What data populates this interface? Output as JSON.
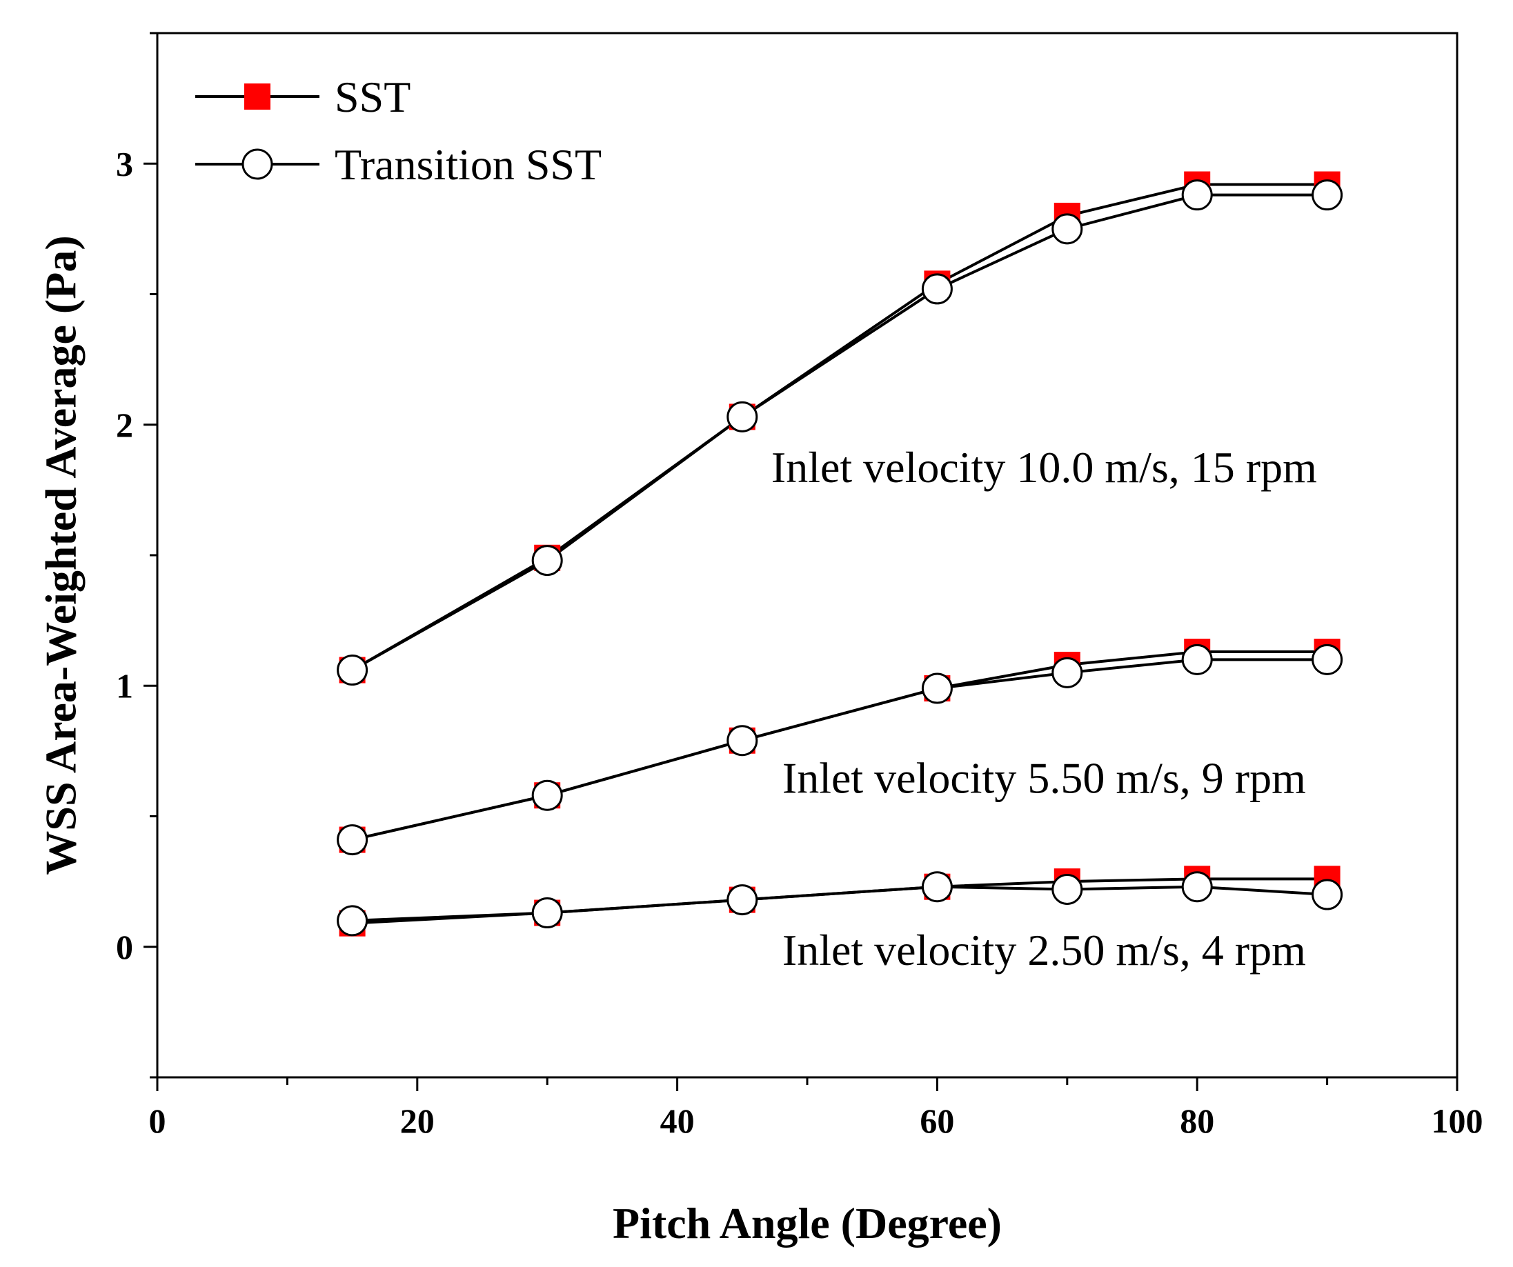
{
  "chart_data": {
    "type": "line",
    "title": "",
    "xlabel": "Pitch Angle (Degree)",
    "ylabel": "WSS Area-Weighted Average (Pa)",
    "xlim": [
      0,
      100
    ],
    "ylim": [
      -0.5,
      3.5
    ],
    "xticks": [
      0,
      20,
      40,
      60,
      80,
      100
    ],
    "yticks": [
      0,
      1,
      2,
      3
    ],
    "grid": false,
    "legend_position": "top-left",
    "x": [
      15,
      30,
      45,
      60,
      70,
      80,
      90
    ],
    "legend": [
      {
        "name": "SST",
        "marker": "square",
        "color": "#ff0000"
      },
      {
        "name": "Transition SST",
        "marker": "circle",
        "color": "#ffffff"
      }
    ],
    "groups": [
      {
        "label": "Inlet velocity 10.0 m/s, 15 rpm",
        "label_x": 60,
        "label_y": 1.78,
        "series": [
          {
            "name": "SST",
            "values": [
              1.06,
              1.49,
              2.03,
              2.54,
              2.8,
              2.92,
              2.92
            ]
          },
          {
            "name": "Transition SST",
            "values": [
              1.06,
              1.48,
              2.03,
              2.52,
              2.75,
              2.88,
              2.88
            ]
          }
        ]
      },
      {
        "label": "Inlet velocity 5.50 m/s, 9 rpm",
        "label_x": 60,
        "label_y": 0.59,
        "series": [
          {
            "name": "SST",
            "values": [
              0.41,
              0.58,
              0.79,
              0.99,
              1.08,
              1.13,
              1.13
            ]
          },
          {
            "name": "Transition SST",
            "values": [
              0.41,
              0.58,
              0.79,
              0.99,
              1.05,
              1.1,
              1.1
            ]
          }
        ]
      },
      {
        "label": "Inlet velocity 2.50 m/s, 4 rpm",
        "label_x": 60,
        "label_y": -0.07,
        "series": [
          {
            "name": "SST",
            "values": [
              0.09,
              0.13,
              0.18,
              0.23,
              0.25,
              0.26,
              0.26
            ]
          },
          {
            "name": "Transition SST",
            "values": [
              0.1,
              0.13,
              0.18,
              0.23,
              0.22,
              0.23,
              0.2
            ]
          }
        ]
      }
    ]
  }
}
